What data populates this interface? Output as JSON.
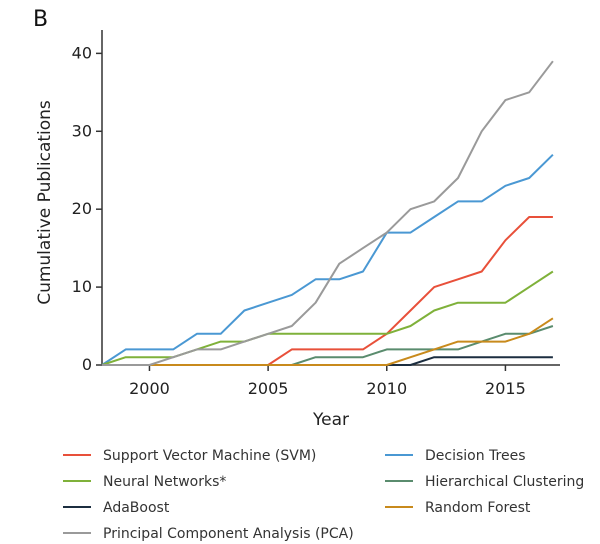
{
  "chart_data": {
    "type": "line",
    "panel_label": "B",
    "title": "",
    "xlabel": "Year",
    "ylabel": "Cumulative Publications",
    "xlim": [
      1998,
      2017.3
    ],
    "ylim": [
      0,
      43
    ],
    "xticks": [
      2000,
      2005,
      2010,
      2015
    ],
    "yticks": [
      0,
      10,
      20,
      30,
      40
    ],
    "grid": false,
    "legend_position": "bottom",
    "x": [
      1998,
      1999,
      2000,
      2001,
      2002,
      2003,
      2004,
      2005,
      2006,
      2007,
      2008,
      2009,
      2010,
      2011,
      2012,
      2013,
      2014,
      2015,
      2016,
      2017
    ],
    "series": [
      {
        "name": "Support Vector Machine (SVM)",
        "color": "#e8503a",
        "values": [
          0,
          0,
          0,
          0,
          0,
          0,
          0,
          0,
          2,
          2,
          2,
          2,
          4,
          7,
          10,
          11,
          12,
          16,
          19,
          19
        ]
      },
      {
        "name": "Decision Trees",
        "color": "#4a98d3",
        "values": [
          0,
          2,
          2,
          2,
          4,
          4,
          7,
          8,
          9,
          11,
          11,
          12,
          17,
          17,
          19,
          21,
          21,
          23,
          24,
          27
        ]
      },
      {
        "name": "Neural Networks*",
        "color": "#7fb13a",
        "values": [
          0,
          1,
          1,
          1,
          2,
          3,
          3,
          4,
          4,
          4,
          4,
          4,
          4,
          5,
          7,
          8,
          8,
          8,
          10,
          12
        ]
      },
      {
        "name": "Hierarchical Clustering",
        "color": "#5a8c6e",
        "values": [
          0,
          0,
          0,
          0,
          0,
          0,
          0,
          0,
          0,
          1,
          1,
          1,
          2,
          2,
          2,
          2,
          3,
          4,
          4,
          5
        ]
      },
      {
        "name": "AdaBoost",
        "color": "#1c2e40",
        "values": [
          0,
          0,
          0,
          0,
          0,
          0,
          0,
          0,
          0,
          0,
          0,
          0,
          0,
          0,
          1,
          1,
          1,
          1,
          1,
          1
        ]
      },
      {
        "name": "Random Forest",
        "color": "#c88a1c",
        "values": [
          0,
          0,
          0,
          0,
          0,
          0,
          0,
          0,
          0,
          0,
          0,
          0,
          0,
          1,
          2,
          3,
          3,
          3,
          4,
          6
        ]
      },
      {
        "name": "Principal Component Analysis (PCA)",
        "color": "#9a9a9a",
        "values": [
          0,
          0,
          0,
          1,
          2,
          2,
          3,
          4,
          5,
          8,
          13,
          15,
          17,
          20,
          21,
          24,
          30,
          34,
          35,
          39
        ]
      }
    ]
  }
}
